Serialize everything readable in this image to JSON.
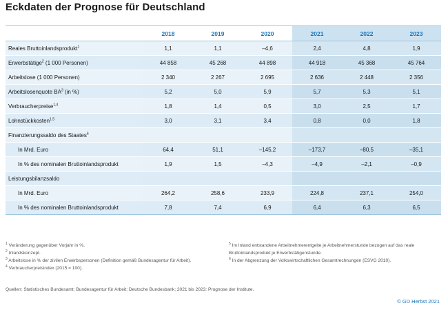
{
  "title": "Eckdaten der Prognose für Deutschland",
  "columns": [
    "2018",
    "2019",
    "2020",
    "2021",
    "2022",
    "2023"
  ],
  "rows": [
    {
      "label": "Reales Bruttoinlandsprodukt",
      "sup": "1",
      "values": [
        "1,1",
        "1,1",
        "–4,6",
        "2,4",
        "4,8",
        "1,9"
      ]
    },
    {
      "label": "Erwerbstätige",
      "sup": "2",
      "label_suffix": " (1 000 Personen)",
      "values": [
        "44 858",
        "45 268",
        "44 898",
        "44 918",
        "45 368",
        "45 764"
      ]
    },
    {
      "label": "Arbeitslose (1 000 Personen)",
      "values": [
        "2 340",
        "2 267",
        "2 695",
        "2 636",
        "2 448",
        "2 356"
      ]
    },
    {
      "label": "Arbeitslosenquote BA",
      "sup": "3",
      "label_suffix": " (in %)",
      "values": [
        "5,2",
        "5,0",
        "5,9",
        "5,7",
        "5,3",
        "5,1"
      ]
    },
    {
      "label": "Verbraucherpreise",
      "sup": "1,4",
      "values": [
        "1,8",
        "1,4",
        "0,5",
        "3,0",
        "2,5",
        "1,7"
      ]
    },
    {
      "label": "Lohnstückkosten",
      "sup": "1,5",
      "values": [
        "3,0",
        "3,1",
        "3,4",
        "0,8",
        "0,0",
        "1,8"
      ]
    },
    {
      "label": "Finanzierungssaldo des Staates",
      "sup": "6",
      "section": true
    },
    {
      "label": "In Mrd. Euro",
      "sub": true,
      "values": [
        "64,4",
        "51,1",
        "–145,2",
        "–173,7",
        "–80,5",
        "–35,1"
      ]
    },
    {
      "label": "In % des nominalen Bruttoinlandsprodukt",
      "sub": true,
      "values": [
        "1,9",
        "1,5",
        "–4,3",
        "–4,9",
        "–2,1",
        "–0,9"
      ]
    },
    {
      "label": "Leistungsbilanzsaldo",
      "section": true
    },
    {
      "label": "In Mrd. Euro",
      "sub": true,
      "values": [
        "264,2",
        "258,6",
        "233,9",
        "224,8",
        "237,1",
        "254,0"
      ]
    },
    {
      "label": "In % des nominalen Bruttoinlandsprodukt",
      "sub": true,
      "values": [
        "7,8",
        "7,4",
        "6,9",
        "6,4",
        "6,3",
        "6,5"
      ]
    }
  ],
  "notes_left": [
    {
      "sup": "1",
      "text": "Veränderung gegenüber Vorjahr in %."
    },
    {
      "sup": "2",
      "text": "Inlandskonzept."
    },
    {
      "sup": "3",
      "text": "Arbeitslose in % der zivilen Erwerbspersonen (Definition gemäß Bundesagentur für Arbeit)."
    },
    {
      "sup": "4",
      "text": "Verbraucherpreisindex (2015 = 100)."
    }
  ],
  "notes_right": [
    {
      "sup": "5",
      "text": "Im Inland entstandene Arbeitnehmerentgelte je Arbeitnehmerstunde bezogen auf das reale Bruttoinlandsprodukt je Erwerbstätigenstunde."
    },
    {
      "sup": "6",
      "text": "In der Abgrenzung der Volkswirtschaftlichen Gesamtrechnungen (ESVG 2010)."
    }
  ],
  "sources": "Quellen: Statistisches Bundesamt; Bundesagentur für Arbeit; Deutsche Bundesbank; 2021 bis 2023: Prognose der Institute.",
  "copyright": "© GD Herbst 2021",
  "colors": {
    "header_text": "#1a74b8",
    "historic_bg": "#e9f2f8",
    "forecast_bg": "#d3e6f2",
    "border": "#9ec5df"
  }
}
